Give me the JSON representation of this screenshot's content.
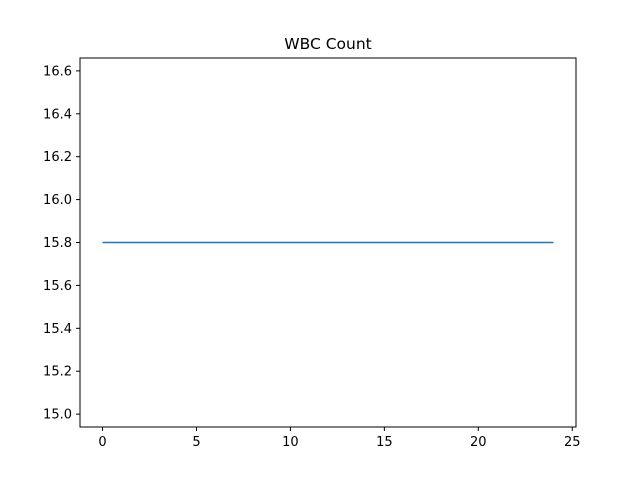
{
  "chart_data": {
    "type": "line",
    "title": "WBC Count",
    "xlabel": "",
    "ylabel": "",
    "xlim": [
      -1.2,
      25.2
    ],
    "ylim": [
      14.94,
      16.66
    ],
    "xticks": [
      0,
      5,
      10,
      15,
      20,
      25
    ],
    "yticks": [
      15.0,
      15.2,
      15.4,
      15.6,
      15.8,
      16.0,
      16.2,
      16.4,
      16.6
    ],
    "grid": false,
    "legend": "none",
    "series": [
      {
        "color": "#1f77b4",
        "x": [
          0,
          24
        ],
        "y": [
          15.8,
          15.8
        ]
      }
    ]
  }
}
